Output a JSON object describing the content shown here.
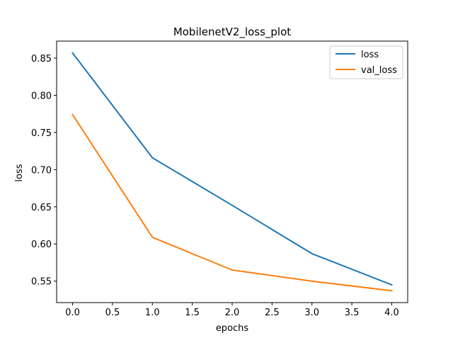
{
  "chart_data": {
    "type": "line",
    "title": "MobilenetV2_loss_plot",
    "xlabel": "epochs",
    "ylabel": "loss",
    "x": [
      0,
      1,
      2,
      3,
      4
    ],
    "series": [
      {
        "name": "loss",
        "values": [
          0.857,
          0.716,
          0.652,
          0.587,
          0.545
        ],
        "color": "#1f77b4"
      },
      {
        "name": "val_loss",
        "values": [
          0.774,
          0.609,
          0.565,
          0.55,
          0.537
        ],
        "color": "#ff7f0e"
      }
    ],
    "xlim": [
      -0.2,
      4.2
    ],
    "ylim": [
      0.5211,
      0.8729
    ],
    "xticks": [
      0,
      0.5,
      1,
      1.5,
      2,
      2.5,
      3,
      3.5,
      4
    ],
    "xtick_labels": [
      "0.0",
      "0.5",
      "1.0",
      "1.5",
      "2.0",
      "2.5",
      "3.0",
      "3.5",
      "4.0"
    ],
    "yticks": [
      0.55,
      0.6,
      0.65,
      0.7,
      0.75,
      0.8,
      0.85
    ],
    "ytick_labels": [
      "0.55",
      "0.60",
      "0.65",
      "0.70",
      "0.75",
      "0.80",
      "0.85"
    ],
    "grid": false,
    "legend_position": "top-right"
  }
}
